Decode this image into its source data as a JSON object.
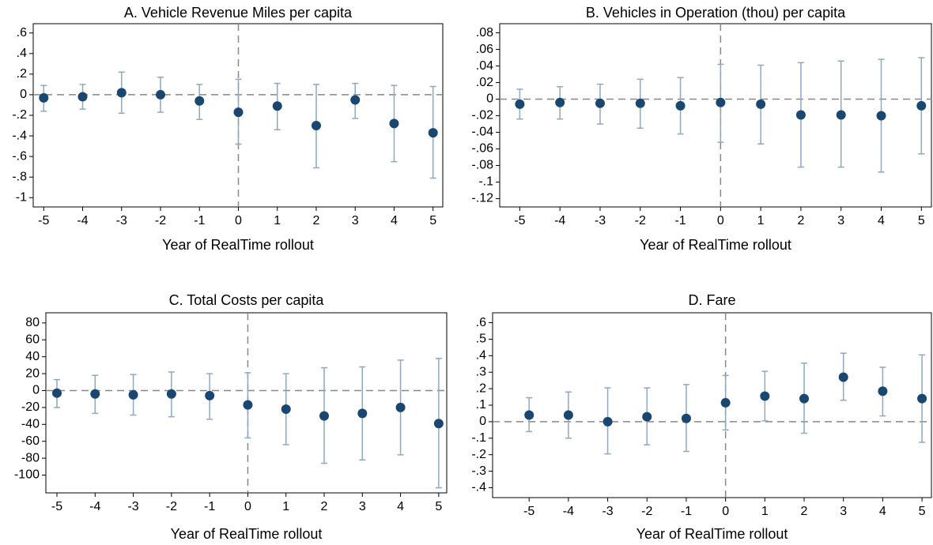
{
  "chart_data": [
    {
      "type": "scatter",
      "title": "A. Vehicle Revenue Miles per capita",
      "xlabel": "Year of RealTime rollout",
      "x": [
        -5,
        -4,
        -3,
        -2,
        -1,
        0,
        1,
        2,
        3,
        4,
        5
      ],
      "values": [
        -0.03,
        -0.02,
        0.02,
        0.0,
        -0.06,
        -0.17,
        -0.11,
        -0.3,
        -0.05,
        -0.28,
        -0.37
      ],
      "ci_low": [
        -0.16,
        -0.14,
        -0.18,
        -0.17,
        -0.24,
        -0.48,
        -0.34,
        -0.71,
        -0.23,
        -0.65,
        -0.81
      ],
      "ci_high": [
        0.09,
        0.1,
        0.22,
        0.17,
        0.1,
        0.15,
        0.11,
        0.1,
        0.11,
        0.09,
        0.08
      ],
      "color": "#1a476f",
      "ci_color": "#8fa8c0",
      "xlim": [
        -5.27,
        5.25
      ],
      "xticks": [
        -5,
        -4,
        -3,
        -2,
        -1,
        0,
        1,
        2,
        3,
        4,
        5
      ],
      "ylim": [
        -1.09,
        0.69
      ],
      "yticks": [
        {
          "value": 0.6,
          "label": ".6"
        },
        {
          "value": 0.4,
          "label": ".4"
        },
        {
          "value": 0.2,
          "label": ".2"
        },
        0,
        {
          "value": -0.2,
          "label": "-.2"
        },
        {
          "value": -0.4,
          "label": "-.4"
        },
        {
          "value": -0.6,
          "label": "-.6"
        },
        {
          "value": -0.8,
          "label": "-.8"
        },
        -1
      ],
      "ref_y": 0,
      "ref_x": 0
    },
    {
      "type": "scatter",
      "title": "B. Vehicles in Operation (thou) per capita",
      "xlabel": "Year of RealTime rollout",
      "x": [
        -5,
        -4,
        -3,
        -2,
        -1,
        0,
        1,
        2,
        3,
        4,
        5
      ],
      "values": [
        -0.006,
        -0.004,
        -0.005,
        -0.005,
        -0.008,
        -0.004,
        -0.006,
        -0.019,
        -0.019,
        -0.02,
        -0.008
      ],
      "ci_low": [
        -0.024,
        -0.024,
        -0.03,
        -0.035,
        -0.042,
        -0.052,
        -0.054,
        -0.082,
        -0.082,
        -0.088,
        -0.066
      ],
      "ci_high": [
        0.012,
        0.015,
        0.018,
        0.024,
        0.026,
        0.042,
        0.041,
        0.044,
        0.046,
        0.048,
        0.05
      ],
      "color": "#1a476f",
      "ci_color": "#8fa8c0",
      "xlim": [
        -5.5,
        5.25
      ],
      "xticks": [
        -5,
        -4,
        -3,
        -2,
        -1,
        0,
        1,
        2,
        3,
        4,
        5
      ],
      "ylim": [
        -0.13,
        0.091
      ],
      "yticks": [
        {
          "value": 0.08,
          "label": ".08"
        },
        {
          "value": 0.06,
          "label": ".06"
        },
        {
          "value": 0.04,
          "label": ".04"
        },
        {
          "value": 0.02,
          "label": ".02"
        },
        0,
        {
          "value": -0.02,
          "label": "-.02"
        },
        {
          "value": -0.04,
          "label": "-.04"
        },
        {
          "value": -0.06,
          "label": "-.06"
        },
        {
          "value": -0.08,
          "label": "-.08"
        },
        {
          "value": -0.1,
          "label": "-.1"
        },
        {
          "value": -0.12,
          "label": "-.12"
        }
      ],
      "ref_y": 0,
      "ref_x": 0
    },
    {
      "type": "scatter",
      "title": "C. Total Costs per capita",
      "xlabel": "Year of RealTime rollout",
      "x": [
        -5,
        -4,
        -3,
        -2,
        -1,
        0,
        1,
        2,
        3,
        4,
        5
      ],
      "values": [
        -3,
        -4,
        -5,
        -4,
        -6,
        -17,
        -22,
        -30,
        -27,
        -20,
        -39
      ],
      "ci_low": [
        -20,
        -27,
        -29,
        -31,
        -34,
        -56,
        -64,
        -86,
        -82,
        -76,
        -115
      ],
      "ci_high": [
        13,
        18,
        19,
        22,
        20,
        21,
        20,
        27,
        28,
        36,
        38
      ],
      "color": "#1a476f",
      "ci_color": "#8fa8c0",
      "xlim": [
        -5.29,
        5.21
      ],
      "xticks": [
        -5,
        -4,
        -3,
        -2,
        -1,
        0,
        1,
        2,
        3,
        4,
        5
      ],
      "ylim": [
        -121,
        92
      ],
      "yticks": [
        80,
        60,
        40,
        20,
        0,
        -20,
        -40,
        -60,
        -80,
        -100
      ],
      "ref_y": 0,
      "ref_x": 0
    },
    {
      "type": "scatter",
      "title": "D. Fare",
      "xlabel": "Year of RealTime rollout",
      "x": [
        -5,
        -4,
        -3,
        -2,
        -1,
        0,
        1,
        2,
        3,
        4,
        5
      ],
      "values": [
        0.04,
        0.04,
        0.0,
        0.03,
        0.02,
        0.115,
        0.155,
        0.14,
        0.27,
        0.185,
        0.14
      ],
      "ci_low": [
        -0.06,
        -0.1,
        -0.195,
        -0.14,
        -0.18,
        -0.05,
        0.005,
        -0.07,
        0.13,
        0.035,
        -0.125
      ],
      "ci_high": [
        0.145,
        0.18,
        0.205,
        0.205,
        0.225,
        0.28,
        0.305,
        0.355,
        0.415,
        0.33,
        0.405
      ],
      "color": "#1a476f",
      "ci_color": "#8fa8c0",
      "xlim": [
        -5.93,
        5.24
      ],
      "xticks": [
        -5,
        -4,
        -3,
        -2,
        -1,
        0,
        1,
        2,
        3,
        4,
        5
      ],
      "ylim": [
        -0.46,
        0.66
      ],
      "yticks": [
        {
          "value": 0.6,
          "label": ".6"
        },
        {
          "value": 0.5,
          "label": ".5"
        },
        {
          "value": 0.4,
          "label": ".4"
        },
        {
          "value": 0.3,
          "label": ".3"
        },
        {
          "value": 0.2,
          "label": ".2"
        },
        {
          "value": 0.1,
          "label": ".1"
        },
        0,
        {
          "value": -0.1,
          "label": "-.1"
        },
        {
          "value": -0.2,
          "label": "-.2"
        },
        {
          "value": -0.3,
          "label": "-.3"
        },
        {
          "value": -0.4,
          "label": "-.4"
        }
      ],
      "ref_y": 0,
      "ref_x": 0
    }
  ]
}
